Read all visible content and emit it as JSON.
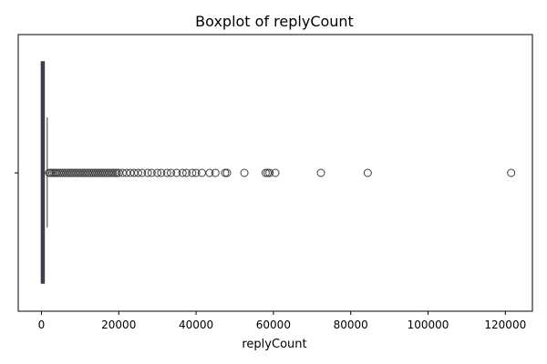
{
  "chart_data": {
    "type": "boxplot",
    "title": "Boxplot of replyCount",
    "xlabel": "replyCount",
    "ylabel": "",
    "orientation": "horizontal",
    "xlim": [
      -6000,
      127000
    ],
    "x_ticks": [
      0,
      20000,
      40000,
      60000,
      80000,
      100000,
      120000
    ],
    "x_tick_labels": [
      "0",
      "20000",
      "40000",
      "60000",
      "80000",
      "100000",
      "120000"
    ],
    "y_ticks": [
      ""
    ],
    "grid": false,
    "box": {
      "whisker_low": 0,
      "q1": 0,
      "median": 200,
      "q3": 600,
      "whisker_high": 1500
    },
    "outliers": [
      2000,
      2400,
      2800,
      3200,
      3600,
      4000,
      4500,
      5000,
      5500,
      6000,
      6500,
      7000,
      7500,
      8000,
      8500,
      9000,
      9500,
      10000,
      10500,
      11000,
      11500,
      12000,
      12500,
      13000,
      13500,
      14000,
      14500,
      15000,
      15500,
      16000,
      16500,
      17000,
      17500,
      18000,
      18500,
      19000,
      19500,
      20000,
      21000,
      22000,
      23000,
      24000,
      25000,
      26000,
      27500,
      28500,
      30000,
      31000,
      32500,
      33500,
      35000,
      36500,
      37500,
      39000,
      40000,
      41500,
      43500,
      45000,
      47500,
      48000,
      52500,
      58000,
      58500,
      59000,
      60500,
      72300,
      84400,
      121500
    ],
    "colors": {
      "box_fill": "#3a4a7a",
      "line": "#3d3d3d",
      "marker_edge": "#3d3d3d"
    }
  }
}
